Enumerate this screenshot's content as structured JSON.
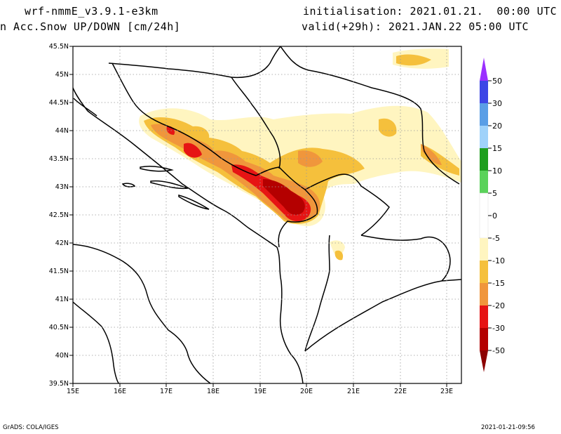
{
  "header": {
    "model": "wrf-nmmE_v3.9.1-e3km",
    "variable": "n Acc.Snow UP/DOWN [cm/24h]",
    "init": "initialisation: 2021.01.21.  00:00 UTC",
    "valid": "valid(+29h): 2021.JAN.22 05:00 UTC"
  },
  "map": {
    "lon_ticks": [
      "15E",
      "16E",
      "17E",
      "18E",
      "19E",
      "20E",
      "21E",
      "22E",
      "23E"
    ],
    "lat_ticks": [
      "39.5N",
      "40N",
      "40.5N",
      "41N",
      "41.5N",
      "42N",
      "42.5N",
      "43N",
      "43.5N",
      "44N",
      "44.5N",
      "45N",
      "45.5N"
    ],
    "lon_range": [
      15,
      23.3
    ],
    "lat_range": [
      39.5,
      45.5
    ]
  },
  "colorbar": {
    "labels": [
      "50",
      "30",
      "20",
      "15",
      "10",
      "5",
      "0",
      "-5",
      "-10",
      "-15",
      "-20",
      "-30",
      "-50"
    ],
    "colors": {
      "top_arrow": "#9b30ff",
      "bottom_arrow": "#8c0000",
      "c_50_30": "#3c46e6",
      "c_30_20": "#5a9ee6",
      "c_20_15": "#a0d2fa",
      "c_15_10": "#1e9e1e",
      "c_10_5": "#5ad25a",
      "c_5_m5": "#ffffff",
      "c_m5_m10": "#fff5c0",
      "c_m10_m15": "#f5c03c",
      "c_m15_m20": "#f0963c",
      "c_m20_m30": "#e61414",
      "c_m30_m50": "#b40000"
    }
  },
  "footer": {
    "left": "GrADS: COLA/IGES",
    "right": "2021-01-21-09:56"
  }
}
